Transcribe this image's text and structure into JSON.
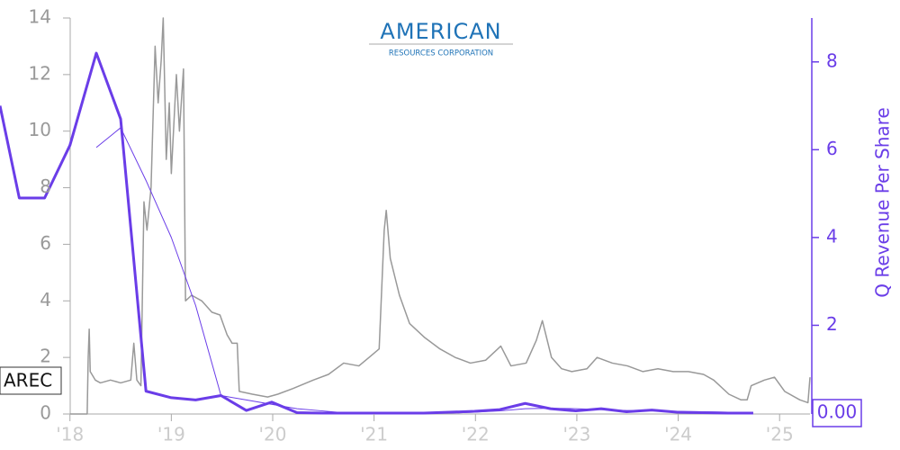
{
  "chart_data": {
    "type": "line",
    "ticker": "AREC",
    "logo_title": "AMERICAN",
    "logo_subtitle": "RESOURCES CORPORATION",
    "y2label": "Q Revenue Per Share",
    "xlim": [
      2017.31,
      2025.3
    ],
    "xticks": [
      {
        "value": 2018,
        "label": "'18"
      },
      {
        "value": 2019,
        "label": "'19"
      },
      {
        "value": 2020,
        "label": "'20"
      },
      {
        "value": 2021,
        "label": "'21"
      },
      {
        "value": 2022,
        "label": "'22"
      },
      {
        "value": 2023,
        "label": "'23"
      },
      {
        "value": 2024,
        "label": "'24"
      },
      {
        "value": 2025,
        "label": "'25"
      }
    ],
    "ylim": [
      0,
      14
    ],
    "yticks": [
      0,
      2,
      4,
      6,
      8,
      10,
      12,
      14
    ],
    "y2lim": [
      0,
      9
    ],
    "y2ticks": [
      2,
      4,
      6,
      8
    ],
    "y2_last_label": {
      "value": 0,
      "label": "0.00"
    },
    "series": [
      {
        "color": "#999999",
        "axis": "y",
        "line_width": 1.5,
        "x": [
          2018.0,
          2018.17,
          2018.18,
          2018.19,
          2018.2,
          2018.25,
          2018.3,
          2018.4,
          2018.5,
          2018.6,
          2018.63,
          2018.66,
          2018.7,
          2018.73,
          2018.76,
          2018.8,
          2018.84,
          2018.87,
          2018.9,
          2018.92,
          2018.95,
          2018.98,
          2019.0,
          2019.05,
          2019.08,
          2019.12,
          2019.14,
          2019.2,
          2019.3,
          2019.4,
          2019.48,
          2019.55,
          2019.6,
          2019.65,
          2019.67,
          2019.8,
          2019.95,
          2020.05,
          2020.2,
          2020.4,
          2020.55,
          2020.7,
          2020.85,
          2020.95,
          2021.05,
          2021.1,
          2021.12,
          2021.16,
          2021.25,
          2021.35,
          2021.5,
          2021.65,
          2021.8,
          2021.95,
          2022.1,
          2022.25,
          2022.35,
          2022.5,
          2022.6,
          2022.66,
          2022.75,
          2022.85,
          2022.95,
          2023.1,
          2023.2,
          2023.35,
          2023.5,
          2023.65,
          2023.8,
          2023.95,
          2024.1,
          2024.25,
          2024.35,
          2024.5,
          2024.62,
          2024.68,
          2024.72,
          2024.85,
          2024.95,
          2025.05,
          2025.2,
          2025.28,
          2025.3
        ],
        "values": [
          0,
          0,
          2.0,
          3.0,
          1.5,
          1.2,
          1.1,
          1.2,
          1.1,
          1.2,
          2.5,
          1.2,
          1.0,
          7.5,
          6.5,
          8,
          13,
          11,
          12.5,
          14,
          9,
          11,
          8.5,
          12,
          10,
          12.2,
          4,
          4.2,
          4,
          3.6,
          3.5,
          2.8,
          2.5,
          2.5,
          0.8,
          0.7,
          0.6,
          0.7,
          0.9,
          1.2,
          1.4,
          1.8,
          1.7,
          2.0,
          2.3,
          6.5,
          7.2,
          5.5,
          4.2,
          3.2,
          2.7,
          2.3,
          2.0,
          1.8,
          1.9,
          2.4,
          1.7,
          1.8,
          2.6,
          3.3,
          2.0,
          1.6,
          1.5,
          1.6,
          2.0,
          1.8,
          1.7,
          1.5,
          1.6,
          1.5,
          1.5,
          1.4,
          1.2,
          0.7,
          0.5,
          0.5,
          1.0,
          1.2,
          1.3,
          0.8,
          0.5,
          0.4,
          1.3
        ]
      },
      {
        "color": "#6a3de8",
        "axis": "y2",
        "line_width": 3,
        "x": [
          2017.31,
          2017.5,
          2017.75,
          2018.0,
          2018.26,
          2018.5,
          2018.75,
          2019.0,
          2019.24,
          2019.49,
          2019.74,
          2019.99,
          2020.24,
          2020.49,
          2020.74,
          2020.99,
          2021.24,
          2021.49,
          2021.74,
          2021.99,
          2022.24,
          2022.49,
          2022.74,
          2022.99,
          2023.24,
          2023.49,
          2023.74,
          2023.99,
          2024.24,
          2024.49,
          2024.74
        ],
        "values": [
          7.0,
          4.9,
          4.9,
          6.1,
          8.2,
          6.7,
          0.5,
          0.35,
          0.3,
          0.4,
          0.06,
          0.25,
          0.01,
          0,
          0,
          0,
          0,
          0,
          0.02,
          0.04,
          0.08,
          0.22,
          0.1,
          0.05,
          0.1,
          0.03,
          0.07,
          0.02,
          0.01,
          0,
          0
        ]
      },
      {
        "color": "#6a3de8",
        "axis": "y2",
        "line_width": 1,
        "x": [
          2018.26,
          2018.5,
          2018.75,
          2019.0,
          2019.24,
          2019.49,
          2019.74,
          2019.99,
          2020.24,
          2020.49,
          2020.74,
          2020.99,
          2021.24,
          2021.49,
          2021.74,
          2021.99,
          2022.24,
          2022.49,
          2022.74,
          2022.99,
          2023.24,
          2023.49,
          2023.74,
          2023.99,
          2024.24,
          2024.49,
          2024.74
        ],
        "values": [
          6.05,
          6.5,
          5.3,
          4.0,
          2.45,
          0.4,
          0.3,
          0.2,
          0.1,
          0.05,
          0,
          0,
          0,
          0,
          0,
          0.02,
          0.05,
          0.1,
          0.11,
          0.1,
          0.08,
          0.06,
          0.05,
          0.04,
          0.03,
          0.02,
          0.01
        ]
      }
    ]
  }
}
